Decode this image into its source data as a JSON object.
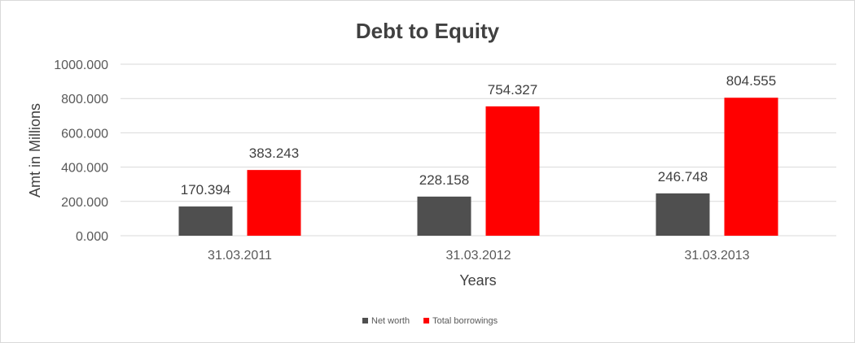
{
  "chart_data": {
    "type": "bar",
    "title": "Debt to Equity",
    "xlabel": "Years",
    "ylabel": "Amt in Millions",
    "categories": [
      "31.03.2011",
      "31.03.2012",
      "31.03.2013"
    ],
    "series": [
      {
        "name": "Net worth",
        "values": [
          170.394,
          228.158,
          246.748
        ],
        "color": "#4f4f4f"
      },
      {
        "name": "Total borrowings",
        "values": [
          383.243,
          754.327,
          804.555
        ],
        "color": "#ff0000"
      }
    ],
    "ylim": [
      0,
      1000
    ],
    "yticks": [
      "0.000",
      "200.000",
      "400.000",
      "600.000",
      "800.000",
      "1000.000"
    ],
    "data_labels": [
      [
        "170.394",
        "228.158",
        "246.748"
      ],
      [
        "383.243",
        "754.327",
        "804.555"
      ]
    ],
    "grid": true,
    "legend_position": "bottom"
  }
}
